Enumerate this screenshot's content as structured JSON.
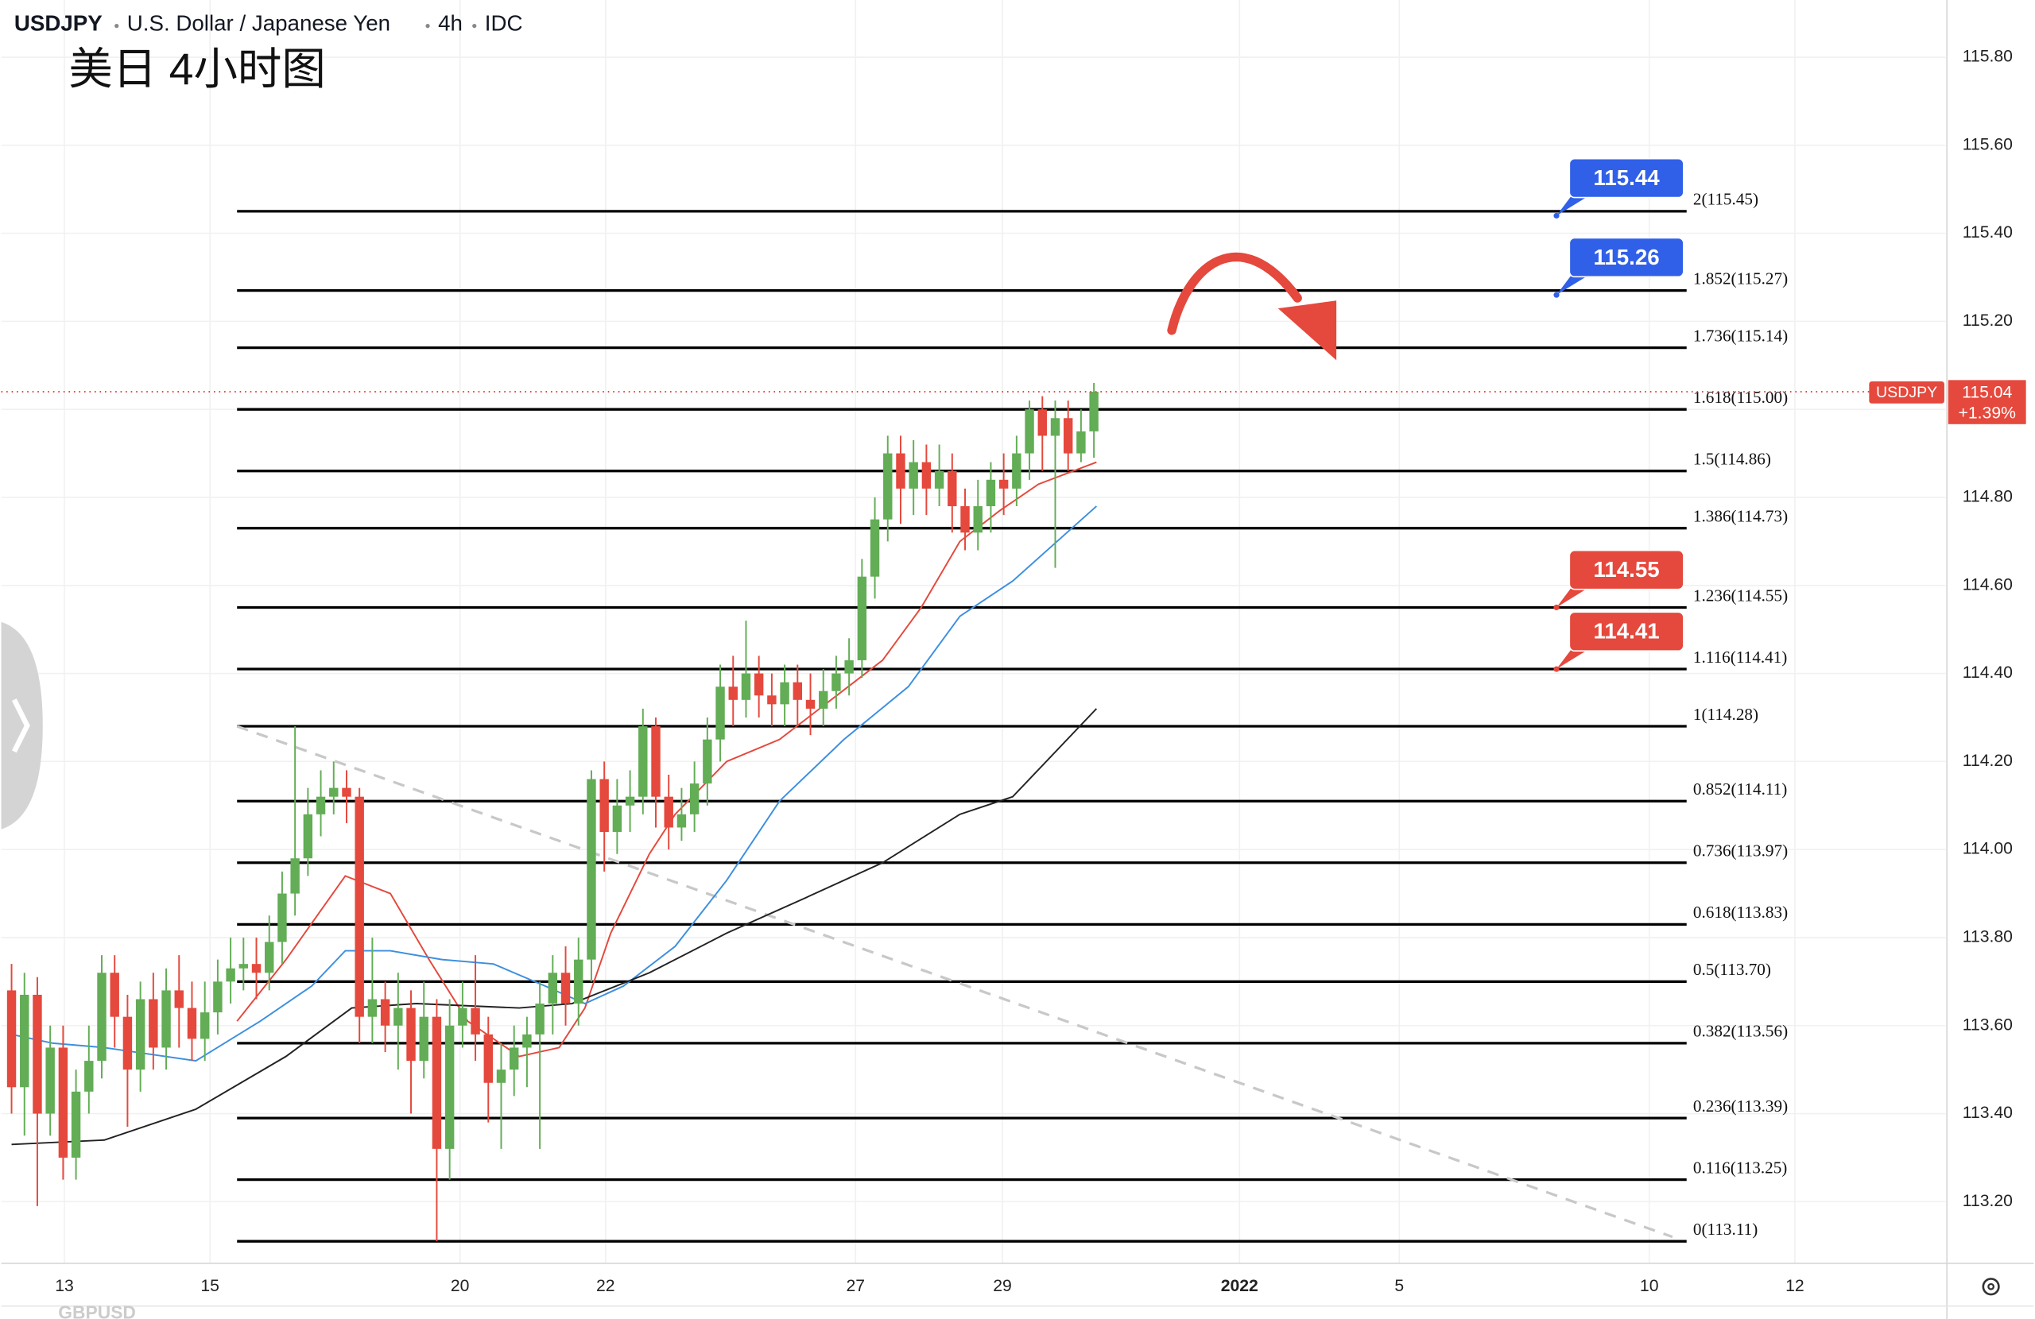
{
  "chart_data": {
    "type": "candlestick",
    "title_parts": [
      "USDJPY",
      "U.S. Dollar / Japanese Yen",
      "4h",
      "IDC"
    ],
    "subtitle": "美日 4小时图",
    "bottom_pane_label": "GBPUSD",
    "grid": true,
    "xlim": [
      -0.8,
      150.1
    ],
    "xticks": [
      {
        "value": 4.1,
        "label": "13"
      },
      {
        "value": 15.4,
        "label": "15"
      },
      {
        "value": 34.8,
        "label": "20"
      },
      {
        "value": 46.1,
        "label": "22"
      },
      {
        "value": 65.5,
        "label": "27"
      },
      {
        "value": 76.9,
        "label": "29"
      },
      {
        "value": 95.3,
        "label": "2022"
      },
      {
        "value": 107.7,
        "label": "5"
      },
      {
        "value": 127.1,
        "label": "10"
      },
      {
        "value": 138.4,
        "label": "12"
      }
    ],
    "ylim": [
      113.06,
      115.93
    ],
    "yticks": [
      {
        "value": 113.2,
        "label": "113.20"
      },
      {
        "value": 113.4,
        "label": "113.40"
      },
      {
        "value": 113.6,
        "label": "113.60"
      },
      {
        "value": 113.8,
        "label": "113.80"
      },
      {
        "value": 114.0,
        "label": "114.00"
      },
      {
        "value": 114.2,
        "label": "114.20"
      },
      {
        "value": 114.4,
        "label": "114.40"
      },
      {
        "value": 114.6,
        "label": "114.60"
      },
      {
        "value": 114.8,
        "label": "114.80"
      },
      {
        "value": 115.0,
        "label": "115.00"
      },
      {
        "value": 115.2,
        "label": "115.20"
      },
      {
        "value": 115.4,
        "label": "115.40"
      },
      {
        "value": 115.6,
        "label": "115.60"
      },
      {
        "value": 115.8,
        "label": "115.80"
      }
    ],
    "up_color": "#62ad55",
    "down_color": "#e5483c",
    "open": [
      113.68,
      113.46,
      113.67,
      113.4,
      113.55,
      113.3,
      113.45,
      113.52,
      113.72,
      113.62,
      113.5,
      113.66,
      113.55,
      113.68,
      113.64,
      113.57,
      113.63,
      113.7,
      113.73,
      113.74,
      113.72,
      113.79,
      113.9,
      113.98,
      114.08,
      114.12,
      114.14,
      114.12,
      113.62,
      113.66,
      113.6,
      113.64,
      113.52,
      113.62,
      113.32,
      113.6,
      113.64,
      113.58,
      113.47,
      113.5,
      113.55,
      113.58,
      113.65,
      113.72,
      113.65,
      113.75,
      114.16,
      114.04,
      114.1,
      114.12,
      114.28,
      114.12,
      114.05,
      114.08,
      114.15,
      114.25,
      114.37,
      114.34,
      114.4,
      114.35,
      114.33,
      114.38,
      114.34,
      114.32,
      114.36,
      114.4,
      114.43,
      114.62,
      114.75,
      114.9,
      114.82,
      114.88,
      114.82,
      114.86,
      114.78,
      114.72,
      114.78,
      114.84,
      114.82,
      114.9,
      115.0,
      114.94,
      114.98,
      114.9,
      114.95
    ],
    "high": [
      113.74,
      113.72,
      113.71,
      113.6,
      113.6,
      113.5,
      113.6,
      113.76,
      113.76,
      113.67,
      113.7,
      113.72,
      113.73,
      113.76,
      113.7,
      113.7,
      113.75,
      113.8,
      113.8,
      113.8,
      113.85,
      113.95,
      114.28,
      114.14,
      114.18,
      114.2,
      114.18,
      114.14,
      113.8,
      113.7,
      113.72,
      113.68,
      113.7,
      113.66,
      113.66,
      113.7,
      113.76,
      113.62,
      113.56,
      113.6,
      113.62,
      113.7,
      113.76,
      113.78,
      113.8,
      114.18,
      114.2,
      114.16,
      114.18,
      114.32,
      114.3,
      114.17,
      114.14,
      114.2,
      114.3,
      114.42,
      114.44,
      114.52,
      114.44,
      114.4,
      114.42,
      114.42,
      114.4,
      114.41,
      114.44,
      114.48,
      114.66,
      114.8,
      114.94,
      114.94,
      114.93,
      114.92,
      114.92,
      114.9,
      114.82,
      114.84,
      114.88,
      114.9,
      114.94,
      115.02,
      115.03,
      115.02,
      115.02,
      115.0,
      115.06
    ],
    "low": [
      113.4,
      113.35,
      113.19,
      113.35,
      113.25,
      113.25,
      113.4,
      113.48,
      113.55,
      113.37,
      113.45,
      113.5,
      113.5,
      113.55,
      113.52,
      113.52,
      113.58,
      113.65,
      113.68,
      113.66,
      113.68,
      113.74,
      113.85,
      113.94,
      114.03,
      114.08,
      114.06,
      113.56,
      113.56,
      113.54,
      113.5,
      113.4,
      113.48,
      113.11,
      113.25,
      113.55,
      113.52,
      113.38,
      113.32,
      113.44,
      113.46,
      113.32,
      113.58,
      113.6,
      113.6,
      113.7,
      113.95,
      113.99,
      114.04,
      114.08,
      114.05,
      114.0,
      114.02,
      114.04,
      114.1,
      114.2,
      114.28,
      114.3,
      114.3,
      114.28,
      114.28,
      114.28,
      114.26,
      114.28,
      114.32,
      114.35,
      114.39,
      114.57,
      114.7,
      114.74,
      114.76,
      114.76,
      114.78,
      114.72,
      114.68,
      114.68,
      114.72,
      114.76,
      114.78,
      114.84,
      114.86,
      114.64,
      114.86,
      114.88,
      114.89
    ],
    "close": [
      113.46,
      113.67,
      113.4,
      113.55,
      113.3,
      113.45,
      113.52,
      113.72,
      113.62,
      113.5,
      113.66,
      113.55,
      113.68,
      113.64,
      113.57,
      113.63,
      113.7,
      113.73,
      113.74,
      113.72,
      113.79,
      113.9,
      113.98,
      114.08,
      114.12,
      114.14,
      114.12,
      113.62,
      113.66,
      113.6,
      113.64,
      113.52,
      113.62,
      113.32,
      113.6,
      113.64,
      113.58,
      113.47,
      113.5,
      113.55,
      113.58,
      113.65,
      113.72,
      113.65,
      113.75,
      114.16,
      114.04,
      114.1,
      114.12,
      114.28,
      114.12,
      114.05,
      114.08,
      114.15,
      114.25,
      114.37,
      114.34,
      114.4,
      114.35,
      114.33,
      114.38,
      114.34,
      114.32,
      114.36,
      114.4,
      114.43,
      114.62,
      114.75,
      114.9,
      114.82,
      114.88,
      114.82,
      114.86,
      114.78,
      114.72,
      114.78,
      114.84,
      114.82,
      114.9,
      115.0,
      114.94,
      114.98,
      114.9,
      114.95,
      115.04
    ],
    "moving_averages": [
      {
        "color": "#e5483c",
        "x": [
          17.5,
          21.3,
          25.9,
          29.4,
          32.4,
          35.4,
          39.4,
          42.5,
          44.5,
          46.5,
          49.5,
          51.5,
          55.5,
          59.6,
          63.6,
          67.6,
          70.6,
          73.6,
          76.7,
          79.7,
          84.2
        ],
        "values": [
          113.61,
          113.75,
          113.94,
          113.9,
          113.75,
          113.61,
          113.53,
          113.55,
          113.64,
          113.81,
          113.99,
          114.08,
          114.2,
          114.25,
          114.34,
          114.43,
          114.55,
          114.7,
          114.77,
          114.83,
          114.88
        ]
      },
      {
        "color": "#3d8fe0",
        "x": [
          0,
          3.2,
          7.2,
          14.3,
          19.3,
          23.3,
          25.9,
          29.4,
          33.4,
          37.4,
          41.4,
          44.5,
          47.5,
          51.5,
          55.5,
          59.6,
          64.6,
          69.6,
          73.6,
          77.7,
          84.2
        ],
        "values": [
          113.58,
          113.56,
          113.55,
          113.52,
          113.61,
          113.69,
          113.77,
          113.77,
          113.75,
          113.74,
          113.69,
          113.65,
          113.69,
          113.78,
          113.93,
          114.11,
          114.25,
          114.37,
          114.53,
          114.61,
          114.78
        ]
      },
      {
        "color": "#222222",
        "x": [
          0,
          7.2,
          14.3,
          21.3,
          26.4,
          31.4,
          39.4,
          43.5,
          49.5,
          55.5,
          61.6,
          67.6,
          73.6,
          77.7,
          84.2
        ],
        "values": [
          113.33,
          113.34,
          113.41,
          113.53,
          113.64,
          113.65,
          113.64,
          113.65,
          113.72,
          113.81,
          113.89,
          113.97,
          114.08,
          114.12,
          114.32
        ]
      }
    ],
    "fib_x_range": [
      17.5,
      130
    ],
    "fib_levels": [
      {
        "value": 115.45,
        "label": "2(115.45)"
      },
      {
        "value": 115.27,
        "label": "1.852(115.27)"
      },
      {
        "value": 115.14,
        "label": "1.736(115.14)"
      },
      {
        "value": 115.0,
        "label": "1.618(115.00)"
      },
      {
        "value": 114.86,
        "label": "1.5(114.86)"
      },
      {
        "value": 114.73,
        "label": "1.386(114.73)"
      },
      {
        "value": 114.55,
        "label": "1.236(114.55)"
      },
      {
        "value": 114.41,
        "label": "1.116(114.41)"
      },
      {
        "value": 114.28,
        "label": "1(114.28)"
      },
      {
        "value": 114.11,
        "label": "0.852(114.11)"
      },
      {
        "value": 113.97,
        "label": "0.736(113.97)"
      },
      {
        "value": 113.83,
        "label": "0.618(113.83)"
      },
      {
        "value": 113.7,
        "label": "0.5(113.70)"
      },
      {
        "value": 113.56,
        "label": "0.382(113.56)"
      },
      {
        "value": 113.39,
        "label": "0.236(113.39)"
      },
      {
        "value": 113.25,
        "label": "0.116(113.25)"
      },
      {
        "value": 113.11,
        "label": "0(113.11)"
      }
    ],
    "trendline": {
      "x": [
        17.5,
        128.9
      ],
      "values": [
        114.28,
        113.12
      ]
    },
    "callouts": [
      {
        "x": 119.9,
        "value": 115.44,
        "color": "#3060e8"
      },
      {
        "x": 119.9,
        "value": 115.26,
        "color": "#3060e8"
      },
      {
        "x": 119.9,
        "value": 114.55,
        "color": "#e5483c"
      },
      {
        "x": 119.9,
        "value": 114.41,
        "color": "#e5483c"
      }
    ],
    "last_price": {
      "symbol": "USDJPY",
      "value": 115.04,
      "change": "+1.39%",
      "color": "#e5483c"
    }
  }
}
